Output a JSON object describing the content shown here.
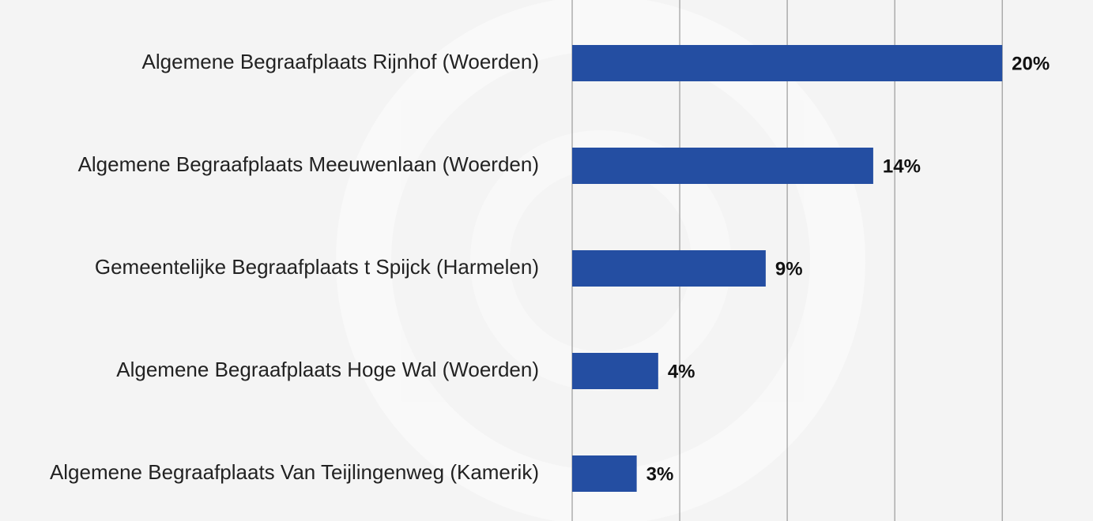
{
  "chart_data": {
    "type": "bar",
    "orientation": "horizontal",
    "categories": [
      "Algemene Begraafplaats Rijnhof (Woerden)",
      "Algemene Begraafplaats Meeuwenlaan (Woerden)",
      "Gemeentelijke Begraafplaats t Spijck (Harmelen)",
      "Algemene Begraafplaats Hoge Wal (Woerden)",
      "Algemene Begraafplaats Van Teijlingenweg (Kamerik)"
    ],
    "values": [
      20,
      14,
      9,
      4,
      3
    ],
    "value_labels": [
      "20%",
      "14%",
      "9%",
      "4%",
      "3%"
    ],
    "color": "#244ea2",
    "xlim": [
      0,
      24
    ],
    "xticks": [
      0,
      5,
      10,
      15,
      20
    ],
    "grid": true
  }
}
